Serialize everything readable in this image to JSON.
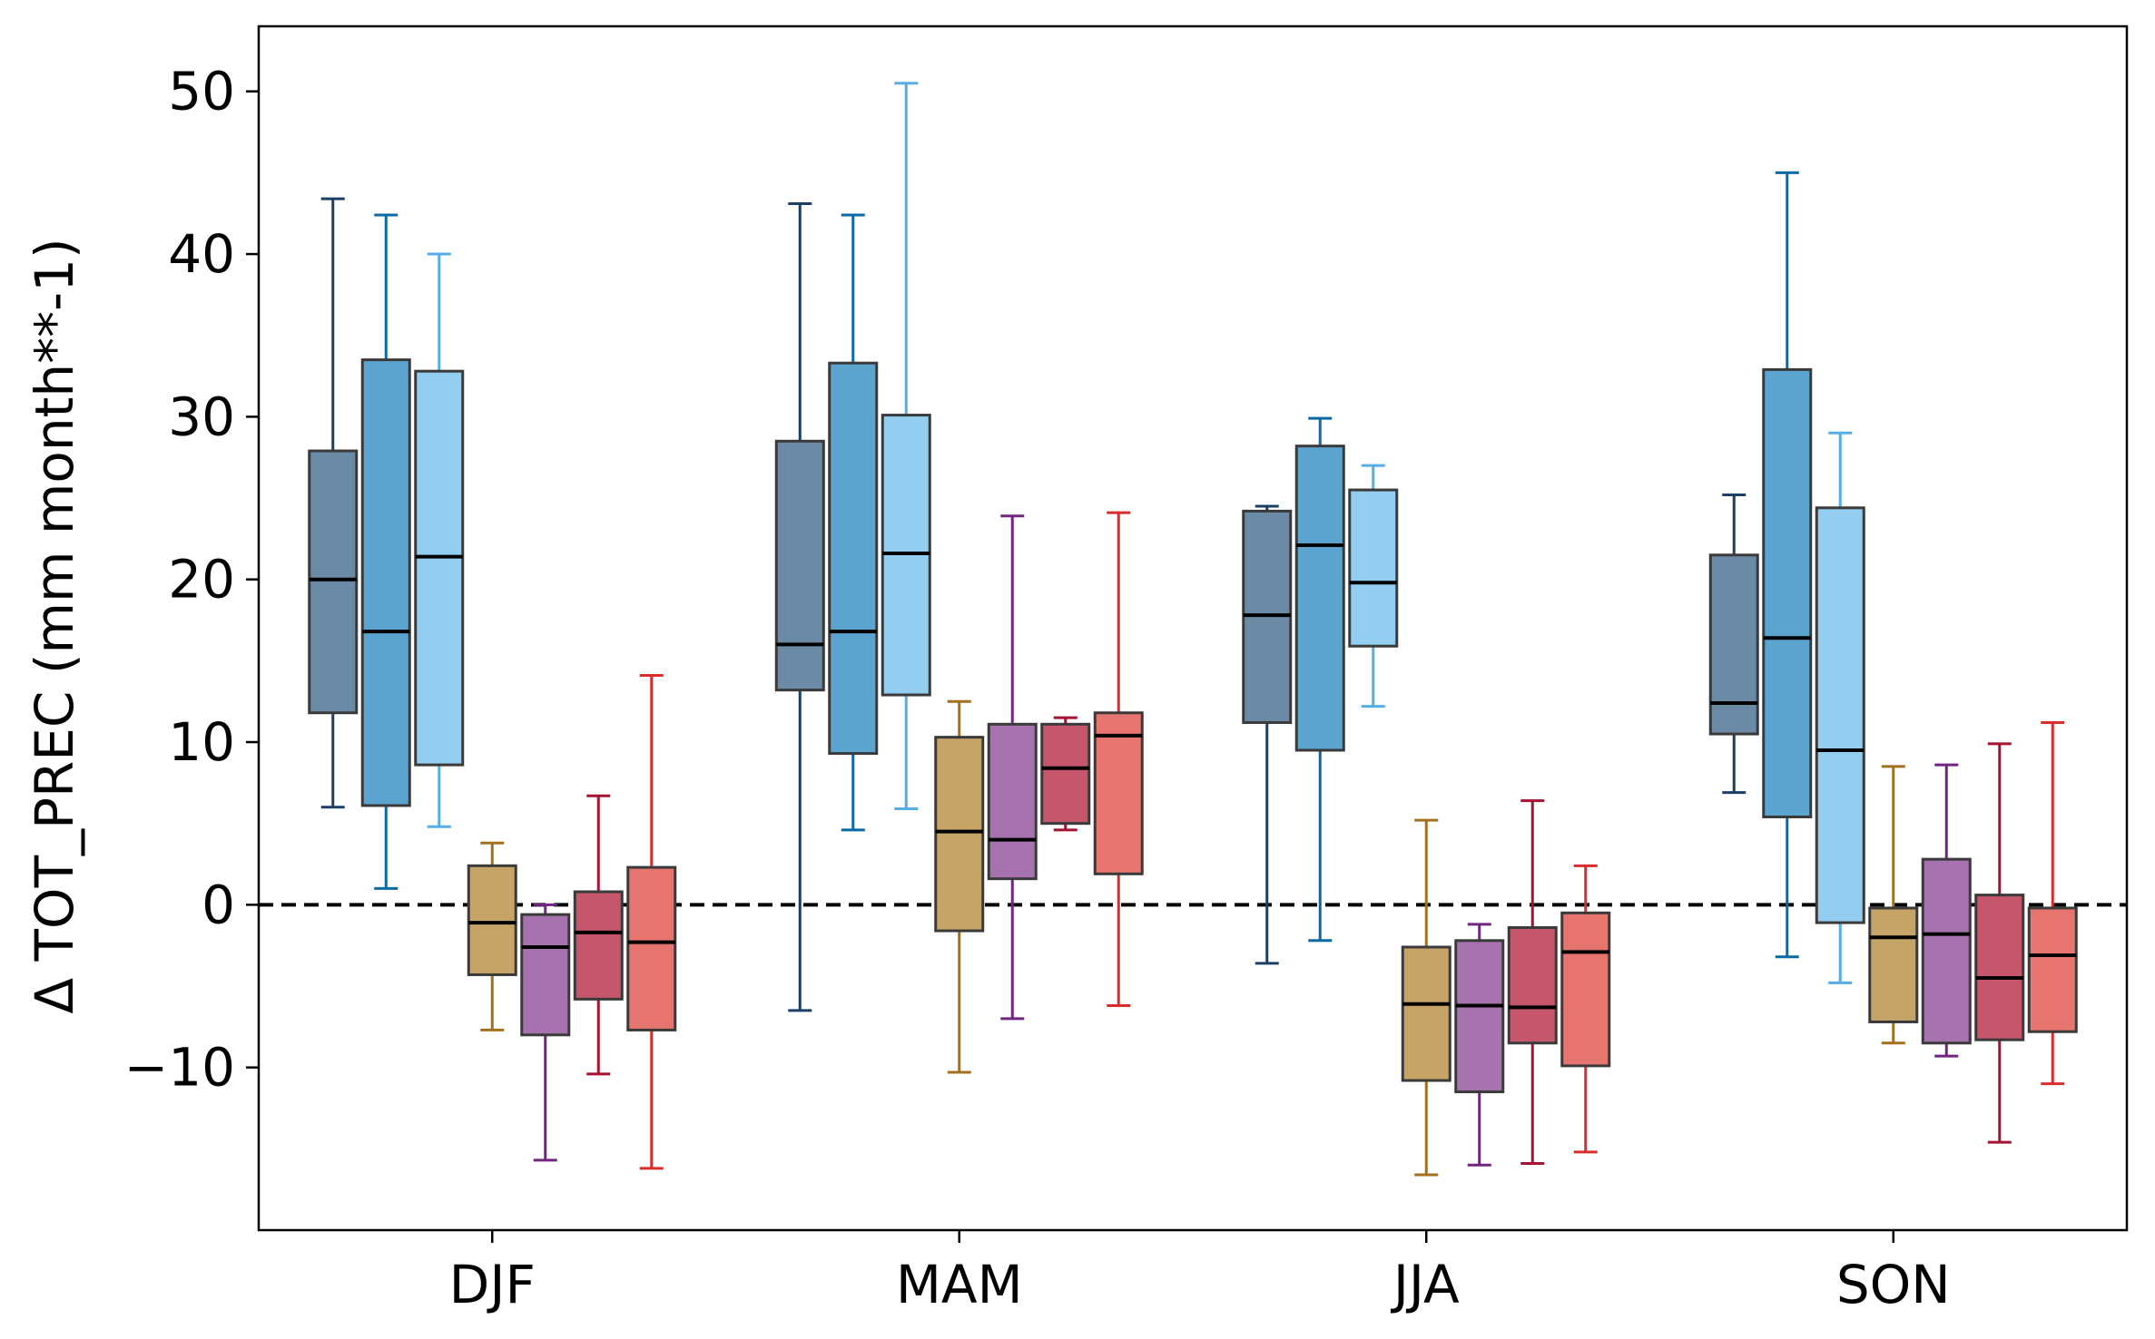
{
  "chart_data": {
    "type": "boxplot",
    "title": "",
    "xlabel": "",
    "ylabel": "Δ TOT_PREC (mm month**-1)",
    "ylim": [
      -20,
      54
    ],
    "yticks": [
      -10,
      0,
      10,
      20,
      30,
      40,
      50
    ],
    "ytick_labels": [
      "−10",
      "0",
      "10",
      "20",
      "30",
      "40",
      "50"
    ],
    "categories": [
      "DJF",
      "MAM",
      "JJA",
      "SON"
    ],
    "reference_line": {
      "y": 0,
      "style": "dashed"
    },
    "series": [
      {
        "name": "series-1",
        "box_color": "#6a8aa5",
        "whisker_color": "#1c3f66",
        "stats": [
          {
            "min": 6,
            "q1": 11.8,
            "median": 20,
            "q3": 27.9,
            "max": 43.4
          },
          {
            "min": -6.5,
            "q1": 13.2,
            "median": 16,
            "q3": 28.5,
            "max": 43.1
          },
          {
            "min": -3.6,
            "q1": 11.2,
            "median": 17.8,
            "q3": 24.2,
            "max": 24.5
          },
          {
            "min": 6.9,
            "q1": 10.5,
            "median": 12.4,
            "q3": 21.5,
            "max": 25.2
          }
        ]
      },
      {
        "name": "series-2",
        "box_color": "#5ba4d0",
        "whisker_color": "#0b6aa6",
        "stats": [
          {
            "min": 1,
            "q1": 6.1,
            "median": 16.8,
            "q3": 33.5,
            "max": 42.4
          },
          {
            "min": 4.6,
            "q1": 9.3,
            "median": 16.8,
            "q3": 33.3,
            "max": 42.4
          },
          {
            "min": -2.2,
            "q1": 9.5,
            "median": 22.1,
            "q3": 28.2,
            "max": 29.9
          },
          {
            "min": -3.2,
            "q1": 5.4,
            "median": 16.4,
            "q3": 32.9,
            "max": 45
          }
        ]
      },
      {
        "name": "series-3",
        "box_color": "#93cdf0",
        "whisker_color": "#55aee4",
        "stats": [
          {
            "min": 4.8,
            "q1": 8.6,
            "median": 21.4,
            "q3": 32.8,
            "max": 40
          },
          {
            "min": 5.9,
            "q1": 12.9,
            "median": 21.6,
            "q3": 30.1,
            "max": 50.5
          },
          {
            "min": 12.2,
            "q1": 15.9,
            "median": 19.8,
            "q3": 25.5,
            "max": 27
          },
          {
            "min": -4.8,
            "q1": -1.1,
            "median": 9.5,
            "q3": 24.4,
            "max": 29
          }
        ]
      },
      {
        "name": "series-4",
        "box_color": "#c6a467",
        "whisker_color": "#a3701f",
        "stats": [
          {
            "min": -7.7,
            "q1": -4.3,
            "median": -1.1,
            "q3": 2.4,
            "max": 3.8
          },
          {
            "min": -10.3,
            "q1": -1.6,
            "median": 4.5,
            "q3": 10.3,
            "max": 12.5
          },
          {
            "min": -16.6,
            "q1": -10.8,
            "median": -6.1,
            "q3": -2.6,
            "max": 5.2
          },
          {
            "min": -8.5,
            "q1": -7.2,
            "median": -2,
            "q3": -0.2,
            "max": 8.5
          }
        ]
      },
      {
        "name": "series-5",
        "box_color": "#a673ae",
        "whisker_color": "#722580",
        "stats": [
          {
            "min": -15.7,
            "q1": -8,
            "median": -2.6,
            "q3": -0.6,
            "max": 0
          },
          {
            "min": -7,
            "q1": 1.6,
            "median": 4,
            "q3": 11.1,
            "max": 23.9
          },
          {
            "min": -16,
            "q1": -11.5,
            "median": -6.2,
            "q3": -2.2,
            "max": -1.2
          },
          {
            "min": -9.3,
            "q1": -8.5,
            "median": -1.8,
            "q3": 2.8,
            "max": 8.6
          }
        ]
      },
      {
        "name": "series-6",
        "box_color": "#c5566c",
        "whisker_color": "#a51232",
        "stats": [
          {
            "min": -10.4,
            "q1": -5.8,
            "median": -1.7,
            "q3": 0.8,
            "max": 6.7
          },
          {
            "min": 4.6,
            "q1": 5,
            "median": 8.4,
            "q3": 11.1,
            "max": 11.5
          },
          {
            "min": -15.9,
            "q1": -8.5,
            "median": -6.3,
            "q3": -1.4,
            "max": 6.4
          },
          {
            "min": -14.6,
            "q1": -8.3,
            "median": -4.5,
            "q3": 0.6,
            "max": 9.9
          }
        ]
      },
      {
        "name": "series-7",
        "box_color": "#e6756f",
        "whisker_color": "#da2d2b",
        "stats": [
          {
            "min": -16.2,
            "q1": -7.7,
            "median": -2.3,
            "q3": 2.3,
            "max": 14.1
          },
          {
            "min": -6.2,
            "q1": 1.9,
            "median": 10.4,
            "q3": 11.8,
            "max": 24.1
          },
          {
            "min": -15.2,
            "q1": -9.9,
            "median": -2.9,
            "q3": -0.5,
            "max": 2.4
          },
          {
            "min": -11,
            "q1": -7.8,
            "median": -3.1,
            "q3": -0.2,
            "max": 11.2
          }
        ]
      }
    ]
  }
}
